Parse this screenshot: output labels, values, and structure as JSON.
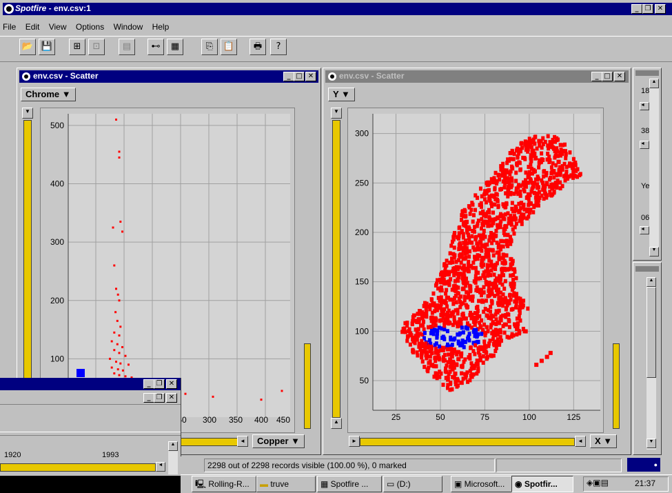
{
  "app": {
    "title_app": "Spotfire",
    "title_doc": " - env.csv:1"
  },
  "menu": [
    "File",
    "Edit",
    "View",
    "Options",
    "Window",
    "Help"
  ],
  "colors": {
    "titlebar": "#000080",
    "inactive_titlebar": "#808080",
    "marker": "#ff0000",
    "marked": "#0000ff",
    "slider": "#e8c800"
  },
  "toolbar_icons": [
    "open-icon",
    "save-icon",
    "new-scatter-icon",
    "new-scatter3d-icon",
    "new-bar-icon",
    "query-device-icon",
    "details-icon",
    "copy-icon",
    "paste-icon",
    "print-icon",
    "help-icon"
  ],
  "left_plot": {
    "title": "env.csv - Scatter",
    "y_column": "Chrome ▼",
    "x_column": "Copper ▼",
    "y_ticks": [
      "500",
      "400",
      "300",
      "200",
      "100"
    ],
    "x_ticks": [
      "50",
      "300",
      "350",
      "400",
      "450"
    ]
  },
  "right_plot": {
    "title": "env.csv - Scatter",
    "y_column": "Y ▼",
    "x_column": "X ▼",
    "y_ticks": [
      "300",
      "250",
      "200",
      "150",
      "100",
      "50"
    ],
    "x_ticks": [
      "25",
      "50",
      "75",
      "100",
      "125"
    ]
  },
  "query_panel": {
    "labels": [
      "18",
      "38",
      "Ye",
      "06"
    ]
  },
  "overlap_window": {
    "min_label": "1920",
    "max_label": "1993",
    "row2_left": "5",
    "row2_right": "450"
  },
  "status": {
    "text": "2298 out of 2298 records visible (100.00 %), 0 marked"
  },
  "taskbar": {
    "items": [
      "Rolling-R...",
      "truve",
      "Spotfire ...",
      "(D:)",
      "Microsoft...",
      "Spotfir..."
    ],
    "clock": "21:37"
  },
  "chart_data": [
    {
      "type": "scatter",
      "title": "env.csv - Scatter",
      "xlabel": "Copper",
      "ylabel": "Chrome",
      "x_ticks": [
        50,
        300,
        350,
        400,
        450
      ],
      "y_ticks": [
        100,
        200,
        300,
        400,
        500
      ],
      "grid": true,
      "series": [
        {
          "color": "#ff0000",
          "points": [
            [
              55,
              510
            ],
            [
              60,
              455
            ],
            [
              60,
              445
            ],
            [
              50,
              325
            ],
            [
              62,
              335
            ],
            [
              65,
              318
            ],
            [
              52,
              260
            ],
            [
              55,
              220
            ],
            [
              58,
              210
            ],
            [
              60,
              200
            ],
            [
              54,
              180
            ],
            [
              57,
              165
            ],
            [
              62,
              155
            ],
            [
              52,
              145
            ],
            [
              60,
              140
            ],
            [
              48,
              130
            ],
            [
              57,
              125
            ],
            [
              65,
              120
            ],
            [
              52,
              115
            ],
            [
              60,
              110
            ],
            [
              70,
              105
            ],
            [
              45,
              100
            ],
            [
              55,
              95
            ],
            [
              62,
              92
            ],
            [
              75,
              90
            ],
            [
              48,
              85
            ],
            [
              58,
              82
            ],
            [
              66,
              80
            ],
            [
              52,
              75
            ],
            [
              60,
              72
            ],
            [
              70,
              70
            ],
            [
              80,
              68
            ],
            [
              50,
              65
            ],
            [
              58,
              62
            ],
            [
              90,
              60
            ],
            [
              100,
              58
            ],
            [
              65,
              55
            ],
            [
              75,
              52
            ],
            [
              220,
              40
            ],
            [
              260,
              35
            ],
            [
              330,
              30
            ],
            [
              360,
              45
            ],
            [
              390,
              35
            ],
            [
              410,
              28
            ],
            [
              440,
              25
            ]
          ]
        },
        {
          "color": "#0000ff",
          "points": [
            [
              30,
              60
            ],
            [
              45,
              55
            ],
            [
              55,
              50
            ],
            [
              65,
              52
            ],
            [
              75,
              48
            ]
          ]
        }
      ]
    },
    {
      "type": "scatter",
      "title": "env.csv - Scatter",
      "xlabel": "X",
      "ylabel": "Y",
      "x_ticks": [
        25,
        50,
        75,
        100,
        125
      ],
      "y_ticks": [
        50,
        100,
        150,
        200,
        250,
        300
      ],
      "grid": true,
      "series": [
        {
          "color": "#ff0000",
          "name": "",
          "region": "scatter map of Sweden-shaped point cloud"
        },
        {
          "color": "#0000ff",
          "name": "",
          "region": "marked cluster near x 40-75, y 85-105"
        }
      ]
    }
  ]
}
